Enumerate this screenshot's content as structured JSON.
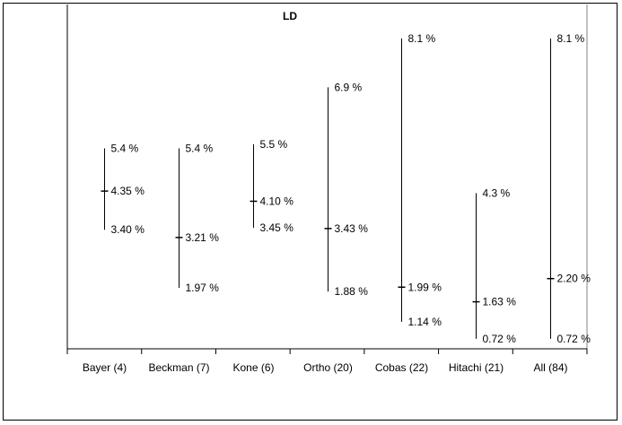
{
  "chart_data": {
    "type": "range",
    "title": "LD",
    "categories": [
      "Bayer (4)",
      "Beckman (7)",
      "Kone (6)",
      "Ortho (20)",
      "Cobas (22)",
      "Hitachi (21)",
      "All (84)"
    ],
    "series": [
      {
        "high": 5.4,
        "mid": 4.35,
        "low": 3.4,
        "labels": [
          "5.4 %",
          "4.35 %",
          "3.40 %"
        ]
      },
      {
        "high": 5.4,
        "mid": 3.21,
        "low": 1.97,
        "labels": [
          "5.4 %",
          "3.21 %",
          "1.97 %"
        ]
      },
      {
        "high": 5.5,
        "mid": 4.1,
        "low": 3.45,
        "labels": [
          "5.5 %",
          "4.10 %",
          "3.45 %"
        ]
      },
      {
        "high": 6.9,
        "mid": 3.43,
        "low": 1.88,
        "labels": [
          "6.9 %",
          "3.43 %",
          "1.88 %"
        ]
      },
      {
        "high": 8.1,
        "mid": 1.99,
        "low": 1.14,
        "labels": [
          "8.1 %",
          "1.99 %",
          "1.14 %"
        ]
      },
      {
        "high": 4.3,
        "mid": 1.63,
        "low": 0.72,
        "labels": [
          "4.3 %",
          "1.63 %",
          "0.72 %"
        ]
      },
      {
        "high": 8.1,
        "mid": 2.2,
        "low": 0.72,
        "labels": [
          "8.1 %",
          "2.20 %",
          "0.72 %"
        ]
      }
    ],
    "ylim": [
      0,
      9
    ],
    "grid": false,
    "legend": "none"
  }
}
